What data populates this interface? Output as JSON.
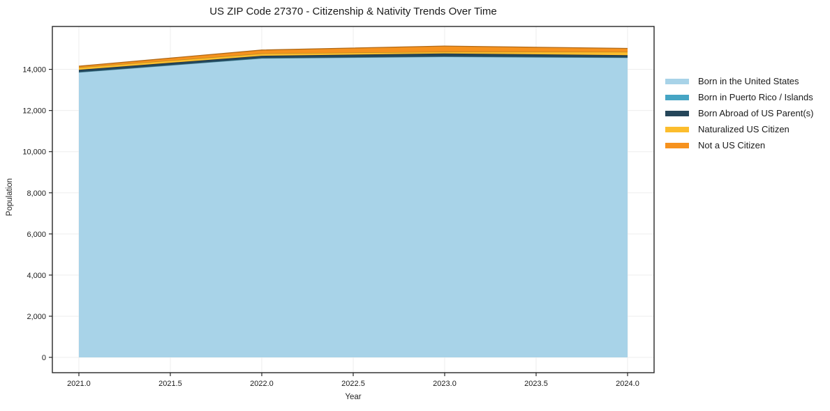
{
  "chart_data": {
    "type": "area",
    "stacked": true,
    "title": "US ZIP Code 27370 - Citizenship & Nativity Trends Over Time",
    "xlabel": "Year",
    "ylabel": "Population",
    "x": [
      2021,
      2022,
      2023,
      2024
    ],
    "series": [
      {
        "name": "Born in the United States",
        "color": "#a8d3e8",
        "values": [
          13860,
          14540,
          14620,
          14570
        ]
      },
      {
        "name": "Born in Puerto Rico / Islands",
        "color": "#46a5c4",
        "values": [
          10,
          10,
          10,
          10
        ]
      },
      {
        "name": "Born Abroad of US Parent(s)",
        "color": "#25465a",
        "values": [
          110,
          110,
          145,
          110
        ]
      },
      {
        "name": "Naturalized US Citizen",
        "color": "#fcbd2d",
        "values": [
          115,
          110,
          80,
          160
        ]
      },
      {
        "name": "Not a US Citizen",
        "color": "#f6921e",
        "values": [
          60,
          170,
          280,
          170
        ]
      }
    ],
    "x_ticks": [
      2021.0,
      2021.5,
      2022.0,
      2022.5,
      2023.0,
      2023.5,
      2024.0
    ],
    "x_tick_labels": [
      "2021.0",
      "2021.5",
      "2022.0",
      "2022.5",
      "2023.0",
      "2023.5",
      "2024.0"
    ],
    "y_ticks": [
      0,
      2000,
      4000,
      6000,
      8000,
      10000,
      12000,
      14000
    ],
    "y_tick_labels": [
      "0",
      "2,000",
      "4,000",
      "6,000",
      "8,000",
      "10,000",
      "12,000",
      "14,000"
    ],
    "xlim": [
      2020.855,
      2024.145
    ],
    "ylim": [
      -745,
      16085
    ],
    "grid": true,
    "legend_position": "right-outside",
    "grid_color": "#ededed",
    "axis_color": "#262626"
  }
}
